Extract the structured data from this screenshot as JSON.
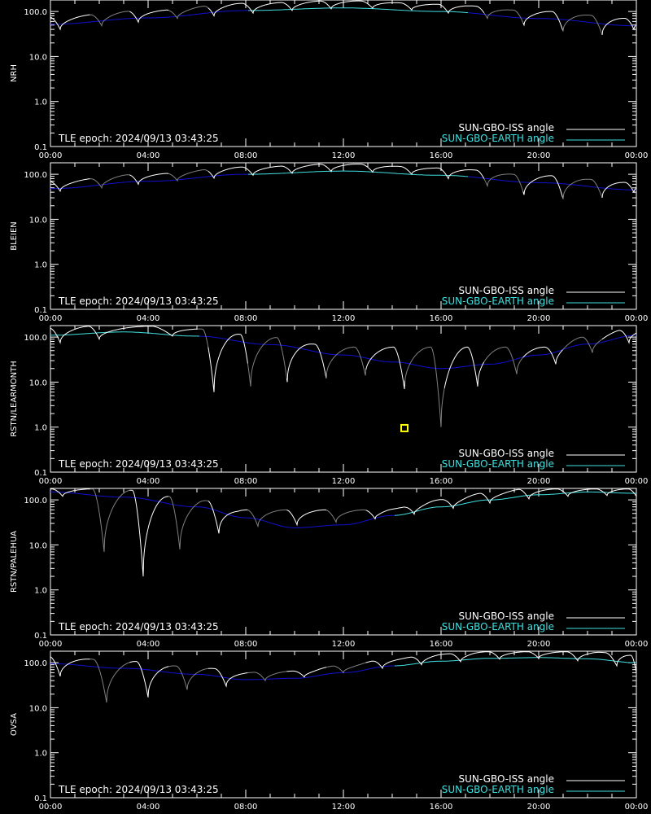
{
  "colors": {
    "background": "#000000",
    "axes": "#ffffff",
    "iss_day": "#ffffff",
    "iss_night": "#808080",
    "earth_day": "#40e0e0",
    "earth_night": "#1010d0",
    "marker": "#ffff00"
  },
  "x_ticks": [
    "00:00",
    "04:00",
    "08:00",
    "12:00",
    "16:00",
    "20:00",
    "00:00"
  ],
  "y_ticks": [
    "0.1",
    "1.0",
    "10.0",
    "100.0"
  ],
  "legend": {
    "iss_label": "SUN-GBO-ISS angle",
    "earth_label": "SUN-GBO-EARTH angle"
  },
  "tle_text": "TLE epoch: 2024/09/13 03:43:25",
  "chart_data": [
    {
      "type": "line",
      "station": "NRH",
      "xlim": [
        0,
        24
      ],
      "ylim": [
        0.1,
        180
      ],
      "yscale": "log",
      "earth": {
        "x": [
          0,
          4,
          8,
          12,
          16,
          20,
          24
        ],
        "y": [
          52,
          72,
          105,
          120,
          100,
          70,
          48
        ]
      },
      "earth_day_range": [
        8,
        17
      ],
      "iss_dips": [
        0.4,
        2.1,
        3.6,
        5.2,
        6.7,
        8.3,
        9.9,
        11.5,
        13.2,
        14.8,
        16.3,
        17.9,
        19.4,
        21.0,
        22.6,
        23.9
      ],
      "iss_mins": [
        40,
        48,
        58,
        70,
        80,
        92,
        105,
        115,
        118,
        108,
        92,
        70,
        50,
        36,
        30,
        40
      ]
    },
    {
      "type": "line",
      "station": "BLEIEN",
      "xlim": [
        0,
        24
      ],
      "ylim": [
        0.1,
        180
      ],
      "yscale": "log",
      "earth": {
        "x": [
          0,
          4,
          8,
          12,
          16,
          20,
          24
        ],
        "y": [
          48,
          70,
          100,
          118,
          95,
          65,
          45
        ]
      },
      "earth_day_range": [
        8,
        17
      ],
      "iss_dips": [
        0.4,
        2.1,
        3.6,
        5.2,
        6.7,
        8.3,
        9.9,
        11.5,
        13.2,
        14.8,
        16.3,
        17.9,
        19.4,
        21.0,
        22.6,
        23.9
      ],
      "iss_mins": [
        42,
        50,
        60,
        72,
        82,
        95,
        105,
        115,
        112,
        100,
        80,
        55,
        35,
        28,
        30,
        40
      ]
    },
    {
      "type": "line",
      "station": "RSTN/LEARMONTH",
      "xlim": [
        0,
        24
      ],
      "ylim": [
        0.1,
        180
      ],
      "yscale": "log",
      "earth": {
        "x": [
          0,
          3,
          6,
          9,
          12,
          14,
          16,
          18,
          20,
          22,
          24
        ],
        "y": [
          110,
          130,
          105,
          68,
          40,
          28,
          20,
          25,
          40,
          70,
          110
        ]
      },
      "earth_day_range": [
        0,
        6
      ],
      "iss_dips": [
        0.4,
        2.0,
        5.0,
        6.7,
        8.2,
        9.7,
        11.3,
        12.9,
        14.5,
        16.0,
        17.5,
        19.1,
        20.7,
        22.2,
        23.7
      ],
      "iss_mins": [
        75,
        90,
        105,
        6,
        8,
        10,
        12,
        14,
        7,
        1.0,
        8,
        15,
        25,
        45,
        75
      ],
      "marker": {
        "x": 14.5,
        "y": 0.95
      }
    },
    {
      "type": "line",
      "station": "RSTN/PALEHUA",
      "xlim": [
        0,
        24
      ],
      "ylim": [
        0.1,
        180
      ],
      "yscale": "log",
      "earth": {
        "x": [
          0,
          3,
          6,
          8,
          10,
          12,
          14,
          16,
          18,
          20,
          22,
          24
        ],
        "y": [
          150,
          115,
          70,
          40,
          24,
          28,
          45,
          70,
          100,
          130,
          150,
          140
        ]
      },
      "earth_day_range": [
        14,
        24
      ],
      "iss_dips": [
        0.5,
        2.2,
        3.8,
        5.3,
        6.9,
        8.5,
        10.1,
        11.7,
        13.3,
        14.9,
        16.5,
        18.0,
        19.6,
        21.2,
        22.8,
        24.0
      ],
      "iss_mins": [
        120,
        7,
        2,
        8,
        18,
        26,
        28,
        32,
        38,
        48,
        65,
        85,
        105,
        120,
        125,
        120
      ]
    },
    {
      "type": "line",
      "station": "OVSA",
      "xlim": [
        0,
        24
      ],
      "ylim": [
        0.1,
        180
      ],
      "yscale": "log",
      "earth": {
        "x": [
          0,
          3,
          6,
          8,
          10,
          12,
          14,
          16,
          18,
          20,
          22,
          24
        ],
        "y": [
          95,
          75,
          55,
          42,
          45,
          60,
          85,
          108,
          125,
          130,
          122,
          100
        ]
      },
      "earth_day_range": [
        14,
        24
      ],
      "iss_dips": [
        0.4,
        2.3,
        4.0,
        5.6,
        7.2,
        8.8,
        10.4,
        12.0,
        13.6,
        15.2,
        16.8,
        18.4,
        20.0,
        21.6,
        23.2,
        24.0
      ],
      "iss_mins": [
        50,
        13,
        17,
        25,
        30,
        40,
        48,
        60,
        75,
        90,
        105,
        120,
        125,
        110,
        85,
        60
      ]
    }
  ]
}
